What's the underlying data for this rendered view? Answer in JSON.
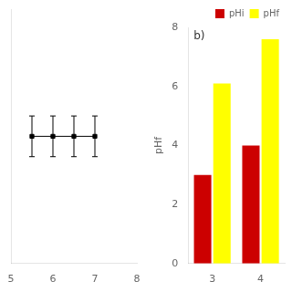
{
  "chart_data": [
    {
      "type": "line",
      "x": [
        5.5,
        6.0,
        6.5,
        7.0
      ],
      "values": [
        4.75,
        4.75,
        4.75,
        4.75
      ],
      "errors": [
        0.12,
        0.12,
        0.12,
        0.12
      ],
      "color": "black",
      "marker": "square",
      "xlim": [
        5.0,
        8.0
      ],
      "xticks": [
        5,
        6,
        7,
        8
      ],
      "ylim": [
        4.0,
        5.5
      ],
      "tick_labels": "x",
      "grid": false
    },
    {
      "type": "bar",
      "categories": [
        3,
        4
      ],
      "series": [
        {
          "name": "pHi",
          "color": "#cc0000",
          "values": [
            3.0,
            4.0
          ]
        },
        {
          "name": "pHf",
          "color": "#ffff00",
          "values": [
            6.1,
            7.6
          ]
        }
      ],
      "y_label": "pHf",
      "ylim": [
        0,
        8
      ],
      "yticks": [
        0,
        2,
        4,
        6,
        8
      ],
      "legend": "upper right",
      "annotations": [
        "b)"
      ],
      "grid": false
    }
  ]
}
